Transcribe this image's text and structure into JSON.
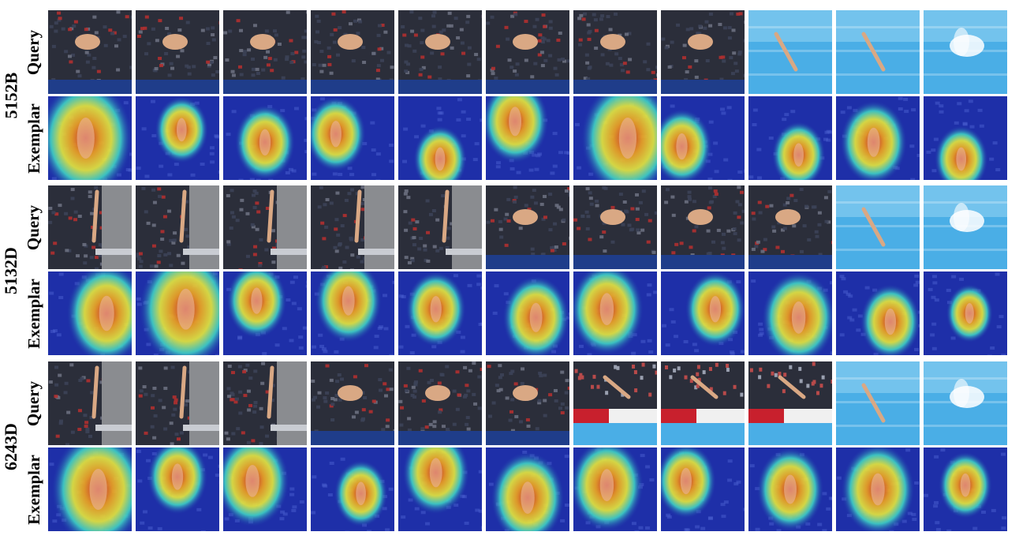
{
  "groups": [
    {
      "code": "5152B",
      "rows": {
        "query_label": "Query",
        "exemplar_label": "Exemplar"
      },
      "query_scenes": [
        "stands",
        "stands",
        "stands",
        "stands",
        "stands",
        "stands",
        "stands",
        "stands",
        "pool",
        "pool",
        "splash"
      ],
      "heat_spots": [
        [
          0.45,
          0.5,
          0.7
        ],
        [
          0.55,
          0.4,
          0.4
        ],
        [
          0.5,
          0.55,
          0.45
        ],
        [
          0.3,
          0.45,
          0.45
        ],
        [
          0.5,
          0.75,
          0.4
        ],
        [
          0.35,
          0.3,
          0.5
        ],
        [
          0.65,
          0.5,
          0.7
        ],
        [
          0.25,
          0.6,
          0.45
        ],
        [
          0.6,
          0.7,
          0.4
        ],
        [
          0.45,
          0.55,
          0.5
        ],
        [
          0.45,
          0.75,
          0.4
        ]
      ]
    },
    {
      "code": "5132D",
      "rows": {
        "query_label": "Query",
        "exemplar_label": "Exemplar"
      },
      "query_scenes": [
        "tower",
        "tower",
        "tower",
        "tower",
        "tower",
        "stands",
        "stands",
        "stands",
        "stands",
        "pool",
        "splash"
      ],
      "heat_spots": [
        [
          0.7,
          0.5,
          0.6
        ],
        [
          0.6,
          0.45,
          0.7
        ],
        [
          0.4,
          0.35,
          0.45
        ],
        [
          0.45,
          0.35,
          0.5
        ],
        [
          0.45,
          0.45,
          0.45
        ],
        [
          0.6,
          0.55,
          0.5
        ],
        [
          0.4,
          0.45,
          0.55
        ],
        [
          0.65,
          0.45,
          0.45
        ],
        [
          0.6,
          0.55,
          0.55
        ],
        [
          0.65,
          0.6,
          0.45
        ],
        [
          0.55,
          0.5,
          0.35
        ]
      ]
    },
    {
      "code": "6243D",
      "rows": {
        "query_label": "Query",
        "exemplar_label": "Exemplar"
      },
      "query_scenes": [
        "tower",
        "tower",
        "tower",
        "stands",
        "stands",
        "stands",
        "banner",
        "banner",
        "banner",
        "pool",
        "splash"
      ],
      "heat_spots": [
        [
          0.6,
          0.5,
          0.7
        ],
        [
          0.5,
          0.35,
          0.45
        ],
        [
          0.35,
          0.4,
          0.55
        ],
        [
          0.6,
          0.55,
          0.4
        ],
        [
          0.45,
          0.3,
          0.5
        ],
        [
          0.5,
          0.6,
          0.55
        ],
        [
          0.4,
          0.45,
          0.55
        ],
        [
          0.3,
          0.4,
          0.45
        ],
        [
          0.5,
          0.5,
          0.5
        ],
        [
          0.5,
          0.5,
          0.55
        ],
        [
          0.5,
          0.45,
          0.4
        ]
      ]
    }
  ],
  "colors": {
    "stands_dark": "#2b2e3a",
    "stands_light": "#6a6f80",
    "pool_blue": "#4aaee6",
    "pool_light": "#8fd0f2",
    "tower_grey": "#8a8c90",
    "banner_red": "#c8202d",
    "heat_base": "#1e2fa8"
  }
}
